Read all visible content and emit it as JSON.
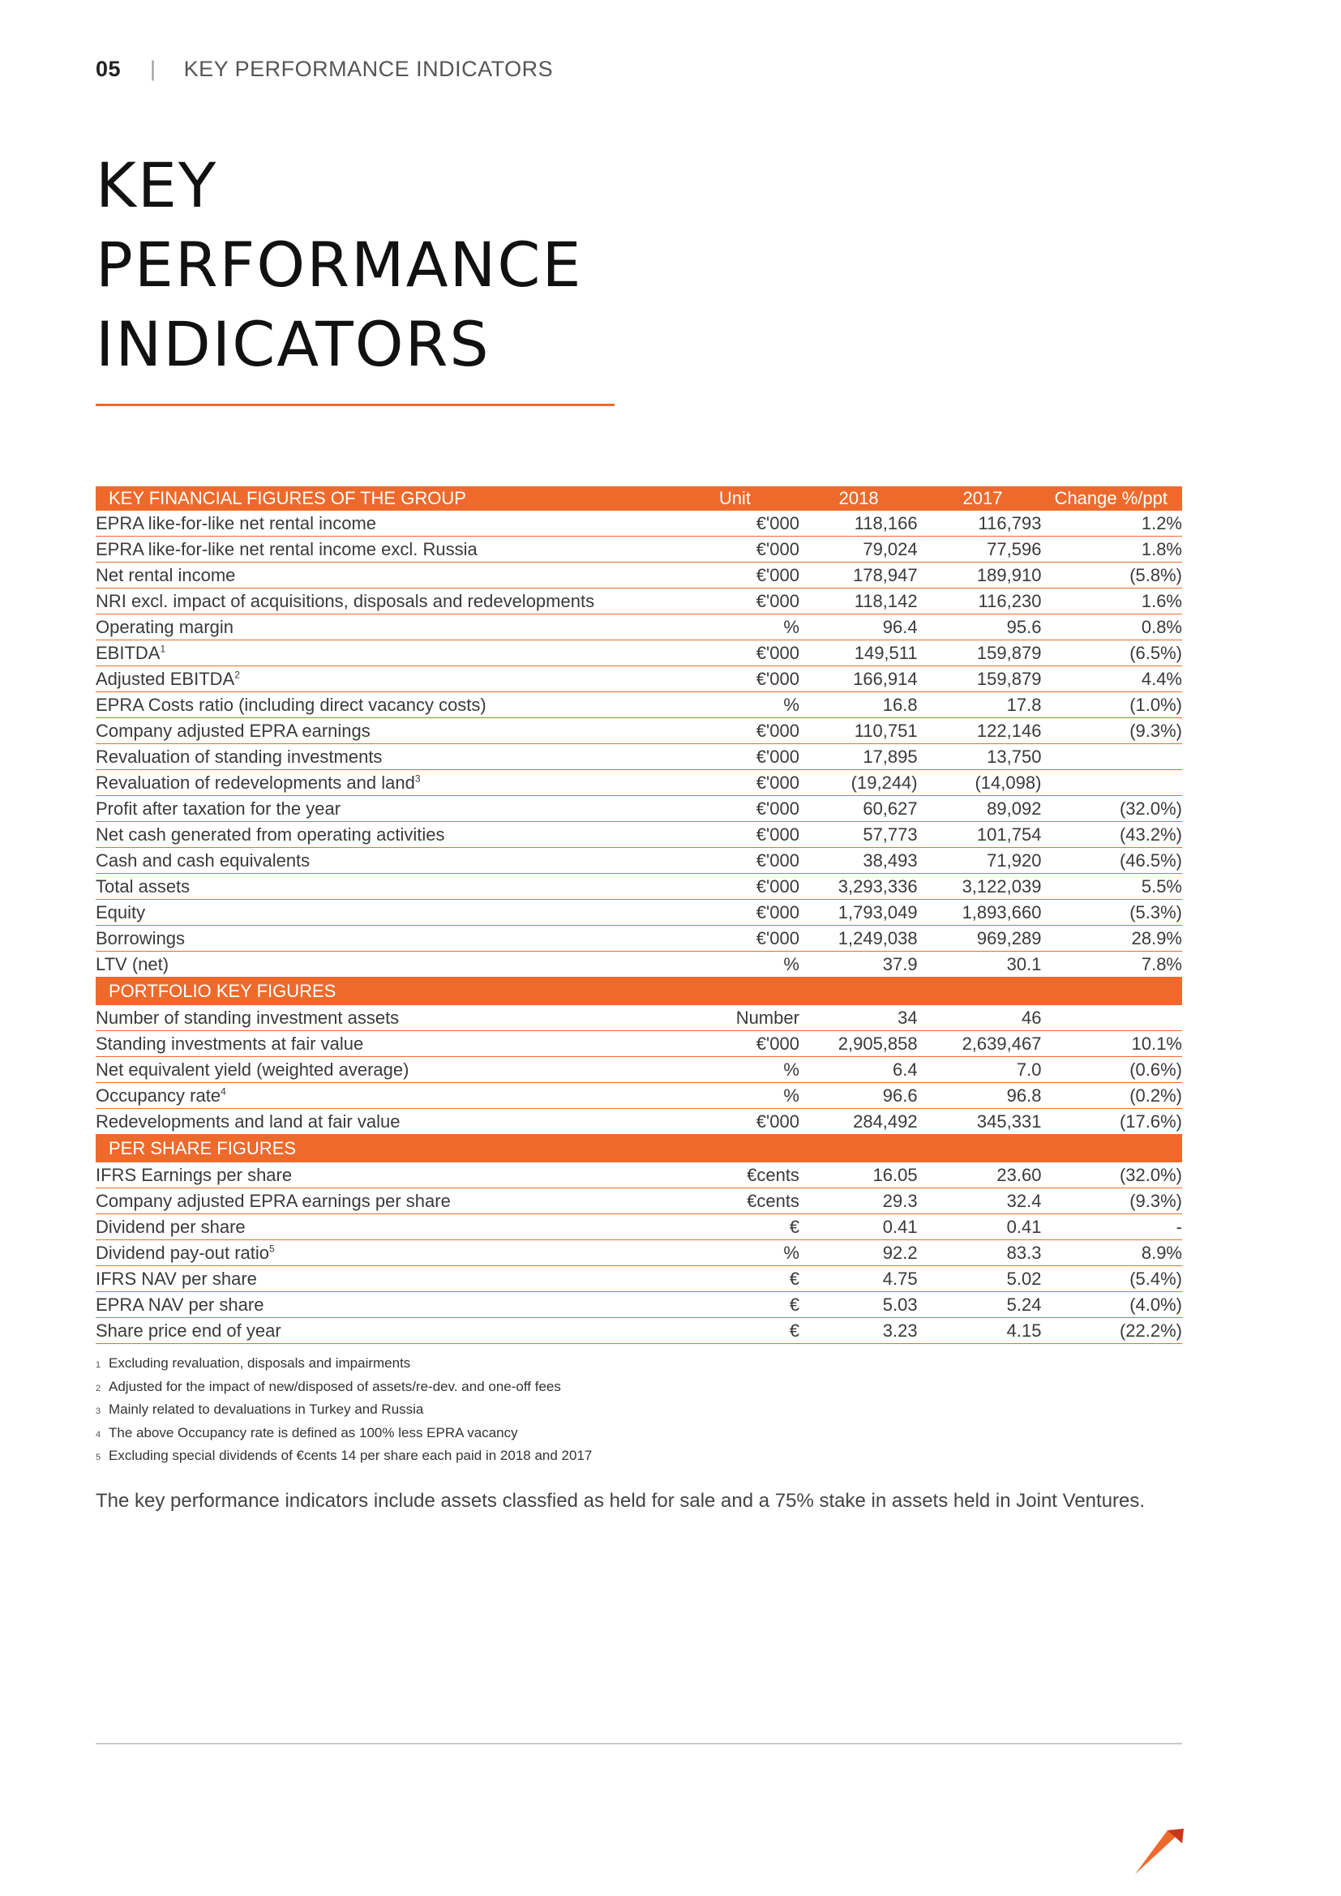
{
  "header": {
    "page_number": "05",
    "separator": "|",
    "section": "KEY PERFORMANCE INDICATORS"
  },
  "title": {
    "line1": "KEY",
    "line2": "PERFORMANCE",
    "line3": "INDICATORS"
  },
  "colors": {
    "accent": "#ee6a2c"
  },
  "table": {
    "header": {
      "label": "KEY FINANCIAL FIGURES OF THE GROUP",
      "unit": "Unit",
      "y2018": "2018",
      "y2017": "2017",
      "change": "Change %/ppt"
    },
    "financial_rows": [
      {
        "label": "EPRA like-for-like net rental income",
        "sup": "",
        "unit": "€'000",
        "y2018": "118,166",
        "y2017": "116,793",
        "change": "1.2%"
      },
      {
        "label": "EPRA like-for-like net rental income excl. Russia",
        "sup": "",
        "unit": "€'000",
        "y2018": "79,024",
        "y2017": "77,596",
        "change": "1.8%"
      },
      {
        "label": "Net rental income",
        "sup": "",
        "unit": "€'000",
        "y2018": "178,947",
        "y2017": "189,910",
        "change": "(5.8%)"
      },
      {
        "label": "NRI excl. impact of acquisitions, disposals and redevelopments",
        "sup": "",
        "unit": "€'000",
        "y2018": "118,142",
        "y2017": "116,230",
        "change": "1.6%"
      },
      {
        "label": "Operating margin",
        "sup": "",
        "unit": "%",
        "y2018": "96.4",
        "y2017": "95.6",
        "change": "0.8%"
      },
      {
        "label": "EBITDA",
        "sup": "1",
        "unit": "€'000",
        "y2018": "149,511",
        "y2017": "159,879",
        "change": "(6.5%)"
      },
      {
        "label": "Adjusted EBITDA",
        "sup": "2",
        "unit": "€'000",
        "y2018": "166,914",
        "y2017": "159,879",
        "change": "4.4%"
      },
      {
        "label": "EPRA Costs ratio (including direct vacancy costs)",
        "sup": "",
        "unit": "%",
        "y2018": "16.8",
        "y2017": "17.8",
        "change": "(1.0%)"
      },
      {
        "label": "Company adjusted EPRA earnings",
        "sup": "",
        "unit": "€'000",
        "y2018": "110,751",
        "y2017": "122,146",
        "change": "(9.3%)"
      },
      {
        "label": "Revaluation of standing investments",
        "sup": "",
        "unit": "€'000",
        "y2018": "17,895",
        "y2017": "13,750",
        "change": ""
      },
      {
        "label": "Revaluation of redevelopments and land",
        "sup": "3",
        "unit": "€'000",
        "y2018": "(19,244)",
        "y2017": "(14,098)",
        "change": ""
      },
      {
        "label": "Profit after taxation for the year",
        "sup": "",
        "unit": "€'000",
        "y2018": "60,627",
        "y2017": "89,092",
        "change": "(32.0%)"
      },
      {
        "label": "Net cash generated from operating activities",
        "sup": "",
        "unit": "€'000",
        "y2018": "57,773",
        "y2017": "101,754",
        "change": "(43.2%)"
      },
      {
        "label": "Cash and cash equivalents",
        "sup": "",
        "unit": "€'000",
        "y2018": "38,493",
        "y2017": "71,920",
        "change": "(46.5%)"
      },
      {
        "label": "Total assets",
        "sup": "",
        "unit": "€'000",
        "y2018": "3,293,336",
        "y2017": "3,122,039",
        "change": "5.5%"
      },
      {
        "label": "Equity",
        "sup": "",
        "unit": "€'000",
        "y2018": "1,793,049",
        "y2017": "1,893,660",
        "change": "(5.3%)"
      },
      {
        "label": "Borrowings",
        "sup": "",
        "unit": "€'000",
        "y2018": "1,249,038",
        "y2017": "969,289",
        "change": "28.9%"
      },
      {
        "label": "LTV (net)",
        "sup": "",
        "unit": "%",
        "y2018": "37.9",
        "y2017": "30.1",
        "change": "7.8%"
      }
    ],
    "portfolio_title": "PORTFOLIO KEY FIGURES",
    "portfolio_rows": [
      {
        "label": "Number of standing investment assets",
        "sup": "",
        "unit": "Number",
        "y2018": "34",
        "y2017": "46",
        "change": ""
      },
      {
        "label": "Standing investments at fair value",
        "sup": "",
        "unit": "€'000",
        "y2018": "2,905,858",
        "y2017": "2,639,467",
        "change": "10.1%"
      },
      {
        "label": "Net equivalent yield (weighted average)",
        "sup": "",
        "unit": "%",
        "y2018": "6.4",
        "y2017": "7.0",
        "change": "(0.6%)"
      },
      {
        "label": "Occupancy rate",
        "sup": "4",
        "unit": "%",
        "y2018": "96.6",
        "y2017": "96.8",
        "change": "(0.2%)"
      },
      {
        "label": "Redevelopments and land at fair value",
        "sup": "",
        "unit": "€'000",
        "y2018": "284,492",
        "y2017": "345,331",
        "change": "(17.6%)"
      }
    ],
    "per_share_title": "PER SHARE FIGURES",
    "per_share_rows": [
      {
        "label": "IFRS Earnings per share",
        "sup": "",
        "unit": "€cents",
        "y2018": "16.05",
        "y2017": "23.60",
        "change": "(32.0%)"
      },
      {
        "label": "Company adjusted EPRA earnings per share",
        "sup": "",
        "unit": "€cents",
        "y2018": "29.3",
        "y2017": "32.4",
        "change": "(9.3%)"
      },
      {
        "label": "Dividend per share",
        "sup": "",
        "unit": "€",
        "y2018": "0.41",
        "y2017": "0.41",
        "change": "-"
      },
      {
        "label": "Dividend pay-out ratio",
        "sup": "5",
        "unit": "%",
        "y2018": "92.2",
        "y2017": "83.3",
        "change": "8.9%"
      },
      {
        "label": "IFRS NAV per share",
        "sup": "",
        "unit": "€",
        "y2018": "4.75",
        "y2017": "5.02",
        "change": "(5.4%)"
      },
      {
        "label": "EPRA NAV per share",
        "sup": "",
        "unit": "€",
        "y2018": "5.03",
        "y2017": "5.24",
        "change": "(4.0%)"
      },
      {
        "label": "Share price end of year",
        "sup": "",
        "unit": "€",
        "y2018": "3.23",
        "y2017": "4.15",
        "change": "(22.2%)"
      }
    ]
  },
  "footnotes": [
    {
      "num": "1",
      "text": "Excluding revaluation, disposals and impairments"
    },
    {
      "num": "2",
      "text": "Adjusted for the impact of new/disposed of assets/re-dev. and one-off fees"
    },
    {
      "num": "3",
      "text": "Mainly related to devaluations in Turkey and Russia"
    },
    {
      "num": "4",
      "text": "The above Occupancy rate is defined as 100% less EPRA vacancy"
    },
    {
      "num": "5",
      "text": "Excluding special dividends of €cents 14 per share each paid in 2018 and 2017"
    }
  ],
  "note": "The key performance indicators include assets classfied as held for sale and a 75% stake in assets held in Joint Ventures.",
  "logo_icon": "company-logo-icon"
}
